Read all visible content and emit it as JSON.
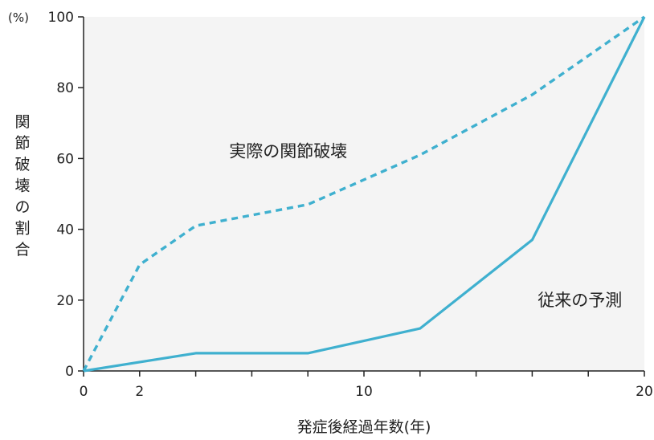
{
  "chart_data": {
    "type": "line",
    "title": "",
    "xlabel": "発症後経過年数(年)",
    "ylabel": "関節破壊の割合",
    "yunit": "(%)",
    "xlim": [
      0,
      20
    ],
    "ylim": [
      0,
      100
    ],
    "xticks": [
      0,
      2,
      4,
      6,
      8,
      10,
      12,
      14,
      16,
      18,
      20
    ],
    "xtick_labels": [
      {
        "value": 0,
        "label": "0"
      },
      {
        "value": 2,
        "label": "2"
      },
      {
        "value": 10,
        "label": "10"
      },
      {
        "value": 20,
        "label": "20"
      }
    ],
    "yticks": [
      0,
      20,
      40,
      60,
      80,
      100
    ],
    "ytick_labels": [
      "0",
      "20",
      "40",
      "60",
      "80",
      "100"
    ],
    "grid": false,
    "colors": {
      "series": "#3fb0cf",
      "axis": "#222222",
      "plot_bg": "#f4f4f4"
    },
    "series": [
      {
        "name": "実際の関節破壊",
        "style": "dashed",
        "x": [
          0,
          2,
          4,
          8,
          12,
          16,
          20
        ],
        "y": [
          0,
          30,
          41,
          47,
          61,
          78,
          100
        ]
      },
      {
        "name": "従来の予測",
        "style": "solid",
        "x": [
          0,
          4,
          8,
          12,
          16,
          20
        ],
        "y": [
          0,
          5,
          5,
          12,
          37,
          100
        ]
      }
    ],
    "annotations": [
      {
        "text": "実際の関節破壊",
        "x": 7.3,
        "y": 62
      },
      {
        "text": "従来の予測",
        "x": 17.7,
        "y": 20
      }
    ]
  }
}
